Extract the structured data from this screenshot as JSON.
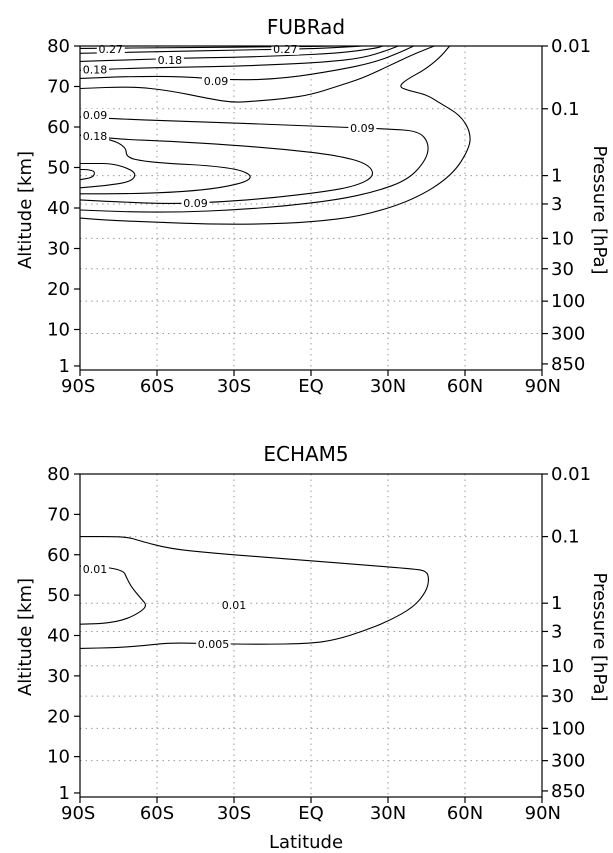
{
  "chart_data": [
    {
      "type": "contour",
      "title": "FUBRad",
      "xlabel": "",
      "ylabel": "Altitude [km]",
      "y2label": "Pressure [hPa]",
      "xticks": [
        "90S",
        "60S",
        "30S",
        "EQ",
        "30N",
        "60N",
        "90N"
      ],
      "xlim": [
        -90,
        90
      ],
      "ylim": [
        0,
        80
      ],
      "yticks": [
        {
          "value": 1,
          "label": "1"
        },
        {
          "value": 10,
          "label": "10"
        },
        {
          "value": 20,
          "label": "20"
        },
        {
          "value": 30,
          "label": "30"
        },
        {
          "value": 40,
          "label": "40"
        },
        {
          "value": 50,
          "label": "50"
        },
        {
          "value": 60,
          "label": "60"
        },
        {
          "value": 70,
          "label": "70"
        },
        {
          "value": 80,
          "label": "80"
        }
      ],
      "pressure_ticks": [
        {
          "altitude": 80,
          "label": "0.01"
        },
        {
          "altitude": 64.5,
          "label": "0.1"
        },
        {
          "altitude": 48,
          "label": "1"
        },
        {
          "altitude": 41,
          "label": "3"
        },
        {
          "altitude": 32.5,
          "label": "10"
        },
        {
          "altitude": 25,
          "label": "30"
        },
        {
          "altitude": 17,
          "label": "100"
        },
        {
          "altitude": 9,
          "label": "300"
        },
        {
          "altitude": 1.5,
          "label": "850"
        }
      ],
      "grid": true,
      "contours": [
        {
          "level": 0.09,
          "points": [
            [
              -90,
              37.5
            ],
            [
              -80,
              37
            ],
            [
              -60,
              36.5
            ],
            [
              -40,
              36
            ],
            [
              -20,
              36
            ],
            [
              0,
              36.5
            ],
            [
              20,
              38
            ],
            [
              40,
              42
            ],
            [
              55,
              48
            ],
            [
              62,
              55
            ],
            [
              62,
              59
            ],
            [
              58,
              63
            ],
            [
              50,
              66
            ],
            [
              45,
              68
            ],
            [
              38,
              69
            ],
            [
              34,
              70
            ],
            [
              38,
              72
            ],
            [
              44,
              74
            ],
            [
              50,
              77
            ],
            [
              54,
              80
            ]
          ]
        },
        {
          "level": 0.09,
          "points": [
            [
              -90,
              39.5
            ],
            [
              -70,
              39
            ],
            [
              -50,
              39
            ],
            [
              -30,
              39.5
            ],
            [
              -10,
              40.5
            ],
            [
              10,
              42
            ],
            [
              25,
              44
            ],
            [
              38,
              47
            ],
            [
              45,
              52
            ],
            [
              46,
              56
            ],
            [
              42,
              59
            ],
            [
              30,
              59.5
            ],
            [
              10,
              60
            ],
            [
              -10,
              60.5
            ],
            [
              -30,
              61
            ],
            [
              -55,
              61.5
            ],
            [
              -75,
              62
            ],
            [
              -90,
              62.5
            ]
          ]
        },
        {
          "level": 0.09,
          "points": [
            [
              -90,
              42
            ],
            [
              -75,
              41.5
            ],
            [
              -55,
              41
            ],
            [
              -35,
              41.5
            ],
            [
              -15,
              42.5
            ],
            [
              5,
              44
            ],
            [
              18,
              45.5
            ],
            [
              25,
              48
            ],
            [
              22,
              51
            ],
            [
              10,
              53
            ],
            [
              -10,
              54.5
            ],
            [
              -30,
              55.5
            ],
            [
              -55,
              56.5
            ],
            [
              -75,
              57
            ],
            [
              -90,
              58
            ]
          ]
        },
        {
          "level": 0.18,
          "points": [
            [
              -90,
              43.5
            ],
            [
              -70,
              43.5
            ],
            [
              -50,
              44
            ],
            [
              -35,
              45
            ],
            [
              -25,
              46.5
            ],
            [
              -23,
              48
            ],
            [
              -28,
              49.5
            ],
            [
              -40,
              50.5
            ],
            [
              -55,
              51
            ],
            [
              -65,
              51.5
            ],
            [
              -72,
              52.5
            ],
            [
              -72,
              55
            ],
            [
              -78,
              57
            ],
            [
              -88,
              57.5
            ],
            [
              -90,
              58
            ]
          ]
        },
        {
          "level": 0.27,
          "points": [
            [
              -90,
              45
            ],
            [
              -80,
              45.5
            ],
            [
              -70,
              46.5
            ],
            [
              -68,
              48.5
            ],
            [
              -72,
              50
            ],
            [
              -78,
              51
            ],
            [
              -85,
              51
            ],
            [
              -90,
              51
            ]
          ]
        },
        {
          "level": 0.36,
          "points": [
            [
              -90,
              47
            ],
            [
              -85,
              47.5
            ],
            [
              -84,
              49
            ],
            [
              -87,
              49.5
            ],
            [
              -90,
              49.5
            ]
          ]
        },
        {
          "level": 0.09,
          "points": [
            [
              -90,
              69.5
            ],
            [
              -70,
              70
            ],
            [
              -55,
              69
            ],
            [
              -40,
              67
            ],
            [
              -30,
              66
            ],
            [
              -20,
              66.5
            ],
            [
              -10,
              67
            ],
            [
              0,
              68
            ],
            [
              10,
              70
            ],
            [
              20,
              72
            ],
            [
              30,
              75
            ],
            [
              40,
              78
            ],
            [
              48,
              80
            ]
          ]
        },
        {
          "level": 0.09,
          "points": [
            [
              -90,
              72
            ],
            [
              -70,
              72.5
            ],
            [
              -50,
              72.5
            ],
            [
              -30,
              71.5
            ],
            [
              -10,
              72
            ],
            [
              10,
              74
            ],
            [
              25,
              76
            ],
            [
              35,
              78.5
            ],
            [
              40,
              80
            ]
          ]
        },
        {
          "level": 0.18,
          "points": [
            [
              -90,
              74
            ],
            [
              -70,
              74.5
            ],
            [
              -50,
              74.8
            ],
            [
              -30,
              75
            ],
            [
              -10,
              75.5
            ],
            [
              5,
              76
            ],
            [
              20,
              77
            ],
            [
              30,
              79
            ],
            [
              34,
              80
            ]
          ]
        },
        {
          "level": 0.18,
          "points": [
            [
              -90,
              76.2
            ],
            [
              -70,
              76.6
            ],
            [
              -50,
              77
            ],
            [
              -30,
              77.2
            ],
            [
              -10,
              77.6
            ],
            [
              10,
              78.2
            ],
            [
              25,
              79.4
            ],
            [
              28,
              80
            ]
          ]
        },
        {
          "level": 0.27,
          "points": [
            [
              -90,
              78.2
            ],
            [
              -60,
              78.6
            ],
            [
              -30,
              79.0
            ],
            [
              0,
              79.3
            ],
            [
              15,
              79.8
            ],
            [
              20,
              80
            ]
          ]
        },
        {
          "level": 0.27,
          "points": [
            [
              -90,
              79.4
            ],
            [
              -50,
              79.6
            ],
            [
              -10,
              79.8
            ],
            [
              10,
              80
            ]
          ]
        }
      ],
      "contour_labels": [
        {
          "text": "0.27",
          "x": -10,
          "y": 79.3
        },
        {
          "text": "0.27",
          "x": -78,
          "y": 79.3
        },
        {
          "text": "0.18",
          "x": -55,
          "y": 76.5
        },
        {
          "text": "0.18",
          "x": -88,
          "y": 74.2
        },
        {
          "text": "0.09",
          "x": -37,
          "y": 71.3
        },
        {
          "text": "0.09",
          "x": -90,
          "y": 63
        },
        {
          "text": "0.09",
          "x": 20,
          "y": 59.8
        },
        {
          "text": "0.18",
          "x": -90,
          "y": 57.8
        },
        {
          "text": "0.09",
          "x": -45,
          "y": 41.2
        }
      ]
    },
    {
      "type": "contour",
      "title": "ECHAM5",
      "xlabel": "Latitude",
      "ylabel": "Altitude [km]",
      "y2label": "Pressure [hPa]",
      "xticks": [
        "90S",
        "60S",
        "30S",
        "EQ",
        "30N",
        "60N",
        "90N"
      ],
      "xlim": [
        -90,
        90
      ],
      "ylim": [
        0,
        80
      ],
      "yticks": [
        {
          "value": 1,
          "label": "1"
        },
        {
          "value": 10,
          "label": "10"
        },
        {
          "value": 20,
          "label": "20"
        },
        {
          "value": 30,
          "label": "30"
        },
        {
          "value": 40,
          "label": "40"
        },
        {
          "value": 50,
          "label": "50"
        },
        {
          "value": 60,
          "label": "60"
        },
        {
          "value": 70,
          "label": "70"
        },
        {
          "value": 80,
          "label": "80"
        }
      ],
      "pressure_ticks": [
        {
          "altitude": 80,
          "label": "0.01"
        },
        {
          "altitude": 64.5,
          "label": "0.1"
        },
        {
          "altitude": 48,
          "label": "1"
        },
        {
          "altitude": 41,
          "label": "3"
        },
        {
          "altitude": 32.5,
          "label": "10"
        },
        {
          "altitude": 25,
          "label": "30"
        },
        {
          "altitude": 17,
          "label": "100"
        },
        {
          "altitude": 9,
          "label": "300"
        },
        {
          "altitude": 1.5,
          "label": "850"
        }
      ],
      "grid": true,
      "contours": [
        {
          "level": 0.005,
          "points": [
            [
              -90,
              36.8
            ],
            [
              -75,
              37
            ],
            [
              -65,
              37.5
            ],
            [
              -55,
              38.2
            ],
            [
              -40,
              38
            ],
            [
              -20,
              37.8
            ],
            [
              0,
              38
            ],
            [
              10,
              39
            ],
            [
              20,
              41
            ],
            [
              30,
              43.5
            ],
            [
              40,
              47
            ],
            [
              45,
              51
            ],
            [
              46,
              54
            ],
            [
              45,
              56
            ],
            [
              40,
              56.5
            ],
            [
              20,
              57.5
            ],
            [
              0,
              58.5
            ],
            [
              -20,
              59.5
            ],
            [
              -40,
              60.5
            ],
            [
              -55,
              61.5
            ],
            [
              -67,
              63.5
            ],
            [
              -72,
              64.5
            ],
            [
              -90,
              64.5
            ]
          ]
        },
        {
          "level": 0.01,
          "points": [
            [
              -90,
              42.8
            ],
            [
              -80,
              43
            ],
            [
              -72,
              44
            ],
            [
              -66,
              46
            ],
            [
              -64,
              47.5
            ],
            [
              -66,
              49
            ],
            [
              -70,
              52
            ],
            [
              -72,
              54.5
            ],
            [
              -73,
              56
            ],
            [
              -80,
              57
            ],
            [
              -90,
              57.2
            ]
          ]
        }
      ],
      "contour_labels": [
        {
          "text": "0.01",
          "x": -90,
          "y": 56.5
        },
        {
          "text": "0.01",
          "x": -30,
          "y": 47.5
        },
        {
          "text": "0.005",
          "x": -38,
          "y": 37.9
        }
      ]
    }
  ]
}
